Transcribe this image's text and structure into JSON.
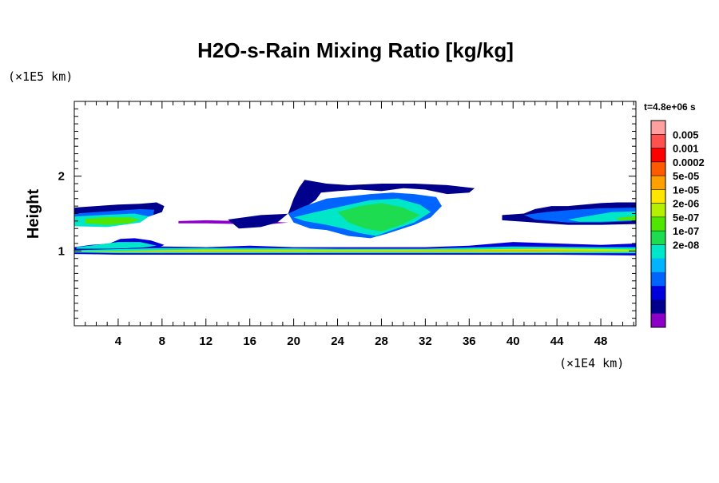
{
  "chart_data": {
    "type": "heatmap",
    "title": "H2O-s-Rain Mixing Ratio [kg/kg]",
    "xlabel": "",
    "ylabel": "Height",
    "x_unit": "(×1E4 km)",
    "y_unit": "(×1E5 km)",
    "time_label": "t=4.8e+06 s",
    "xlim": [
      0,
      51.2
    ],
    "ylim": [
      0,
      3
    ],
    "x_ticks": [
      4,
      8,
      12,
      16,
      20,
      24,
      28,
      32,
      36,
      40,
      44,
      48
    ],
    "x_tick_labels": [
      "4",
      "8",
      "12",
      "16",
      "20",
      "24",
      "28",
      "32",
      "36",
      "40",
      "44",
      "48"
    ],
    "y_ticks": [
      1,
      2
    ],
    "y_tick_labels": [
      "1",
      "2"
    ],
    "colorbar": {
      "colors": [
        "#ffa0a0",
        "#ff5050",
        "#ff0000",
        "#ff5a00",
        "#ffa000",
        "#ffe600",
        "#b4f000",
        "#50e600",
        "#1edc50",
        "#00e6c8",
        "#00b4ff",
        "#0064ff",
        "#0000dc",
        "#00008c",
        "#8c00c8"
      ],
      "tick_labels": [
        "0.005",
        "0.001",
        "0.0002",
        "5e-05",
        "1e-05",
        "2e-06",
        "5e-07",
        "1e-07",
        "2e-08"
      ]
    },
    "regions": [
      {
        "level": 13,
        "poly": [
          [
            0,
            1.58
          ],
          [
            2,
            1.6
          ],
          [
            4,
            1.62
          ],
          [
            6,
            1.63
          ],
          [
            7.5,
            1.65
          ],
          [
            8.2,
            1.6
          ],
          [
            8,
            1.52
          ],
          [
            7,
            1.47
          ],
          [
            5,
            1.42
          ],
          [
            3,
            1.38
          ],
          [
            1,
            1.36
          ],
          [
            0,
            1.38
          ]
        ]
      },
      {
        "level": 11,
        "poly": [
          [
            0,
            1.5
          ],
          [
            3,
            1.53
          ],
          [
            6,
            1.56
          ],
          [
            7.3,
            1.55
          ],
          [
            7.2,
            1.48
          ],
          [
            6,
            1.42
          ],
          [
            3,
            1.38
          ],
          [
            0,
            1.4
          ]
        ]
      },
      {
        "level": 9,
        "poly": [
          [
            0,
            1.46
          ],
          [
            2.5,
            1.48
          ],
          [
            5.5,
            1.5
          ],
          [
            6.8,
            1.46
          ],
          [
            6,
            1.38
          ],
          [
            3,
            1.32
          ],
          [
            0,
            1.33
          ]
        ]
      },
      {
        "level": 7,
        "poly": [
          [
            1,
            1.43
          ],
          [
            3,
            1.45
          ],
          [
            5,
            1.45
          ],
          [
            6,
            1.42
          ],
          [
            5,
            1.37
          ],
          [
            3,
            1.35
          ],
          [
            1,
            1.37
          ]
        ]
      },
      {
        "level": 12,
        "poly": [
          [
            0,
            1.05
          ],
          [
            1.5,
            1.08
          ],
          [
            3.2,
            1.1
          ],
          [
            4.2,
            1.16
          ],
          [
            5.5,
            1.17
          ],
          [
            7,
            1.14
          ],
          [
            8.2,
            1.08
          ],
          [
            7.5,
            1.03
          ],
          [
            5,
            1.01
          ],
          [
            2,
            1.01
          ],
          [
            0,
            1.01
          ]
        ]
      },
      {
        "level": 9,
        "poly": [
          [
            0.2,
            1.05
          ],
          [
            2,
            1.08
          ],
          [
            4,
            1.12
          ],
          [
            6,
            1.12
          ],
          [
            7.5,
            1.07
          ],
          [
            6,
            1.04
          ],
          [
            3,
            1.03
          ],
          [
            0.2,
            1.03
          ]
        ]
      },
      {
        "level": 14,
        "poly": [
          [
            9.5,
            1.4
          ],
          [
            12,
            1.41
          ],
          [
            15,
            1.4
          ],
          [
            18,
            1.39
          ],
          [
            19.5,
            1.38
          ],
          [
            18,
            1.36
          ],
          [
            15,
            1.36
          ],
          [
            12,
            1.37
          ],
          [
            9.5,
            1.37
          ]
        ]
      },
      {
        "level": 13,
        "poly": [
          [
            14,
            1.42
          ],
          [
            17,
            1.48
          ],
          [
            20,
            1.5
          ],
          [
            21,
            1.58
          ],
          [
            22,
            1.68
          ],
          [
            22.5,
            1.78
          ],
          [
            24,
            1.8
          ],
          [
            26,
            1.82
          ],
          [
            28,
            1.8
          ],
          [
            30,
            1.84
          ],
          [
            32,
            1.82
          ],
          [
            34,
            1.76
          ],
          [
            36,
            1.78
          ],
          [
            36.5,
            1.84
          ],
          [
            34,
            1.88
          ],
          [
            31,
            1.9
          ],
          [
            28,
            1.9
          ],
          [
            25,
            1.88
          ],
          [
            23,
            1.9
          ],
          [
            21,
            1.95
          ],
          [
            20.5,
            1.85
          ],
          [
            20,
            1.7
          ],
          [
            19.5,
            1.5
          ],
          [
            18.5,
            1.38
          ],
          [
            17,
            1.32
          ],
          [
            15,
            1.3
          ]
        ]
      },
      {
        "level": 11,
        "poly": [
          [
            19.5,
            1.5
          ],
          [
            21,
            1.6
          ],
          [
            23,
            1.7
          ],
          [
            25,
            1.73
          ],
          [
            27,
            1.76
          ],
          [
            29,
            1.78
          ],
          [
            31,
            1.76
          ],
          [
            33,
            1.72
          ],
          [
            33.5,
            1.6
          ],
          [
            32.5,
            1.45
          ],
          [
            31,
            1.35
          ],
          [
            28.5,
            1.23
          ],
          [
            27,
            1.17
          ],
          [
            25,
            1.2
          ],
          [
            23,
            1.28
          ],
          [
            21.5,
            1.3
          ],
          [
            20,
            1.38
          ]
        ]
      },
      {
        "level": 9,
        "poly": [
          [
            20,
            1.45
          ],
          [
            22,
            1.52
          ],
          [
            24.5,
            1.6
          ],
          [
            27,
            1.68
          ],
          [
            29.5,
            1.7
          ],
          [
            31.5,
            1.62
          ],
          [
            32.5,
            1.52
          ],
          [
            31,
            1.38
          ],
          [
            29,
            1.28
          ],
          [
            27.5,
            1.2
          ],
          [
            26,
            1.24
          ],
          [
            24.5,
            1.3
          ],
          [
            23,
            1.35
          ],
          [
            21,
            1.4
          ]
        ]
      },
      {
        "level": 8,
        "poly": [
          [
            24,
            1.52
          ],
          [
            26,
            1.6
          ],
          [
            28,
            1.64
          ],
          [
            30,
            1.58
          ],
          [
            31.5,
            1.48
          ],
          [
            30,
            1.36
          ],
          [
            28,
            1.26
          ],
          [
            26.5,
            1.3
          ],
          [
            25,
            1.38
          ]
        ]
      },
      {
        "level": 13,
        "poly": [
          [
            39,
            1.48
          ],
          [
            41,
            1.5
          ],
          [
            42,
            1.56
          ],
          [
            43.5,
            1.6
          ],
          [
            45,
            1.6
          ],
          [
            46.5,
            1.62
          ],
          [
            48,
            1.64
          ],
          [
            49.5,
            1.65
          ],
          [
            51.2,
            1.65
          ],
          [
            51.2,
            1.36
          ],
          [
            48,
            1.35
          ],
          [
            45,
            1.35
          ],
          [
            43,
            1.37
          ],
          [
            41,
            1.39
          ],
          [
            39,
            1.41
          ]
        ]
      },
      {
        "level": 11,
        "poly": [
          [
            41,
            1.48
          ],
          [
            43,
            1.52
          ],
          [
            45.5,
            1.55
          ],
          [
            48,
            1.57
          ],
          [
            51.2,
            1.58
          ],
          [
            51.2,
            1.4
          ],
          [
            48,
            1.38
          ],
          [
            45,
            1.38
          ],
          [
            42,
            1.42
          ]
        ]
      },
      {
        "level": 9,
        "poly": [
          [
            45,
            1.42
          ],
          [
            47,
            1.47
          ],
          [
            49,
            1.52
          ],
          [
            51.2,
            1.53
          ],
          [
            51.2,
            1.41
          ],
          [
            48,
            1.39
          ],
          [
            46,
            1.39
          ]
        ]
      },
      {
        "level": 7,
        "poly": [
          [
            49.5,
            1.44
          ],
          [
            51.2,
            1.47
          ],
          [
            51.2,
            1.41
          ],
          [
            49.5,
            1.41
          ]
        ]
      },
      {
        "level": 12,
        "poly": [
          [
            0,
            1.03
          ],
          [
            4,
            1.03
          ],
          [
            8,
            1.06
          ],
          [
            12,
            1.05
          ],
          [
            16,
            1.07
          ],
          [
            20,
            1.05
          ],
          [
            24,
            1.05
          ],
          [
            28,
            1.05
          ],
          [
            32,
            1.05
          ],
          [
            36,
            1.07
          ],
          [
            40,
            1.12
          ],
          [
            44,
            1.1
          ],
          [
            48,
            1.08
          ],
          [
            51.2,
            1.1
          ],
          [
            51.2,
            0.94
          ],
          [
            44,
            0.95
          ],
          [
            36,
            0.95
          ],
          [
            28,
            0.95
          ],
          [
            20,
            0.95
          ],
          [
            12,
            0.95
          ],
          [
            4,
            0.95
          ],
          [
            0,
            0.96
          ]
        ]
      },
      {
        "level": 9,
        "poly": [
          [
            0,
            1.01
          ],
          [
            8,
            1.04
          ],
          [
            16,
            1.04
          ],
          [
            24,
            1.03
          ],
          [
            32,
            1.03
          ],
          [
            40,
            1.06
          ],
          [
            48,
            1.05
          ],
          [
            51.2,
            1.05
          ],
          [
            51.2,
            0.97
          ],
          [
            40,
            0.97
          ],
          [
            28,
            0.97
          ],
          [
            16,
            0.97
          ],
          [
            4,
            0.97
          ],
          [
            0,
            0.98
          ]
        ]
      },
      {
        "level": 6,
        "poly": [
          [
            0,
            0.995
          ],
          [
            12,
            1.02
          ],
          [
            24,
            1.015
          ],
          [
            36,
            1.02
          ],
          [
            44,
            1.035
          ],
          [
            51.2,
            1.02
          ],
          [
            51.2,
            0.99
          ],
          [
            40,
            0.985
          ],
          [
            24,
            0.985
          ],
          [
            8,
            0.985
          ],
          [
            0,
            0.99
          ]
        ]
      },
      {
        "level": 4,
        "poly": [
          [
            2,
            1.0
          ],
          [
            10,
            1.005
          ],
          [
            22,
            1.0
          ],
          [
            32,
            1.005
          ],
          [
            42,
            1.012
          ],
          [
            50,
            1.0
          ],
          [
            42,
            0.997
          ],
          [
            28,
            0.995
          ],
          [
            14,
            0.996
          ],
          [
            4,
            0.997
          ]
        ]
      }
    ]
  }
}
